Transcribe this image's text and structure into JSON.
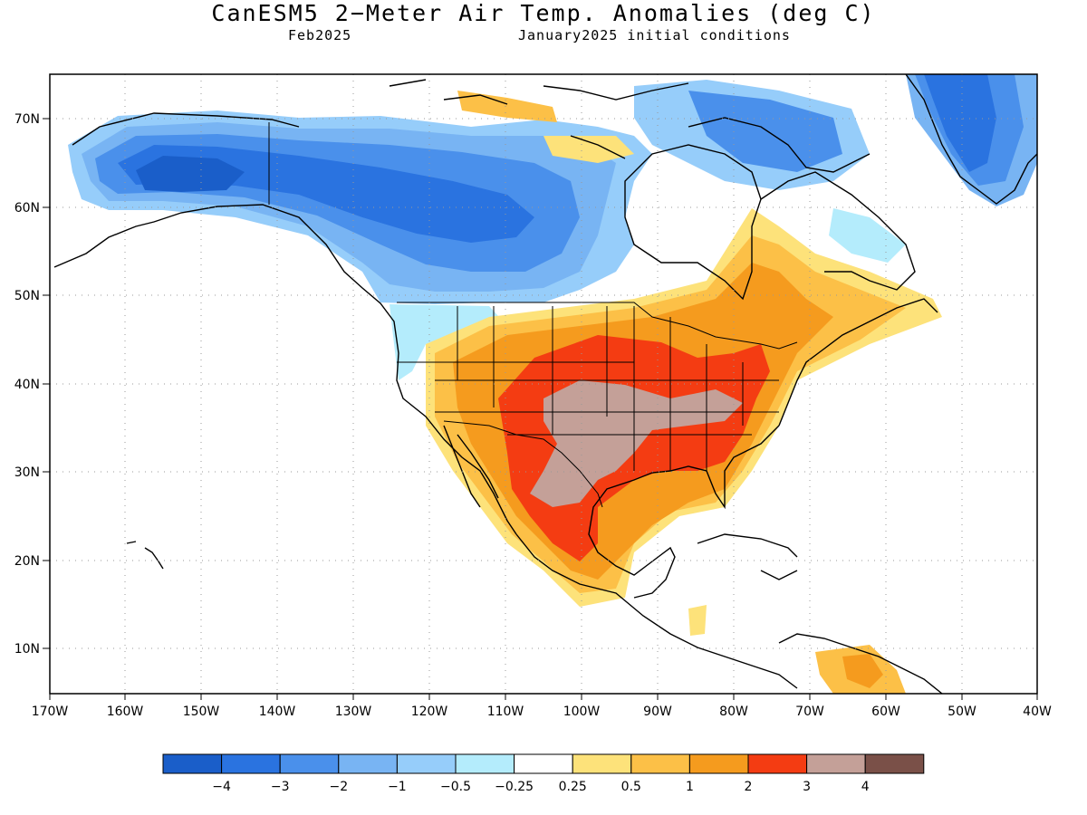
{
  "title": "CanESM5 2−Meter Air Temp. Anomalies (deg C)",
  "subtitle_left": "Feb2025",
  "subtitle_right": "January2025 initial conditions",
  "lat_labels": [
    "70N",
    "60N",
    "50N",
    "40N",
    "30N",
    "20N",
    "10N"
  ],
  "lon_labels": [
    "170W",
    "160W",
    "150W",
    "140W",
    "130W",
    "120W",
    "110W",
    "100W",
    "90W",
    "80W",
    "70W",
    "60W",
    "50W",
    "40W"
  ],
  "colorbar": {
    "colors": [
      "#1a5ec9",
      "#2a73e0",
      "#4a90eb",
      "#78b4f3",
      "#96cdfa",
      "#b4ecfc",
      "#ffffff",
      "#fde27a",
      "#fcc047",
      "#f59b1e",
      "#f43c12",
      "#c4a098",
      "#7a5048"
    ],
    "labels": [
      "−4",
      "−3",
      "−2",
      "−1",
      "−0.5",
      "−0.25",
      "0.25",
      "0.5",
      "1",
      "2",
      "3",
      "4"
    ]
  },
  "colors": {
    "cold_strong": "#2a73e0",
    "cold_mid": "#4a90eb",
    "cold_light": "#78b4f3",
    "cold_pale": "#96cdfa",
    "cold_faint": "#b4ecfc",
    "warm_faint": "#fde27a",
    "warm_light": "#fcc047",
    "warm_mid": "#f59b1e",
    "warm_strong": "#f43c12",
    "warm_extreme": "#c4a098"
  }
}
